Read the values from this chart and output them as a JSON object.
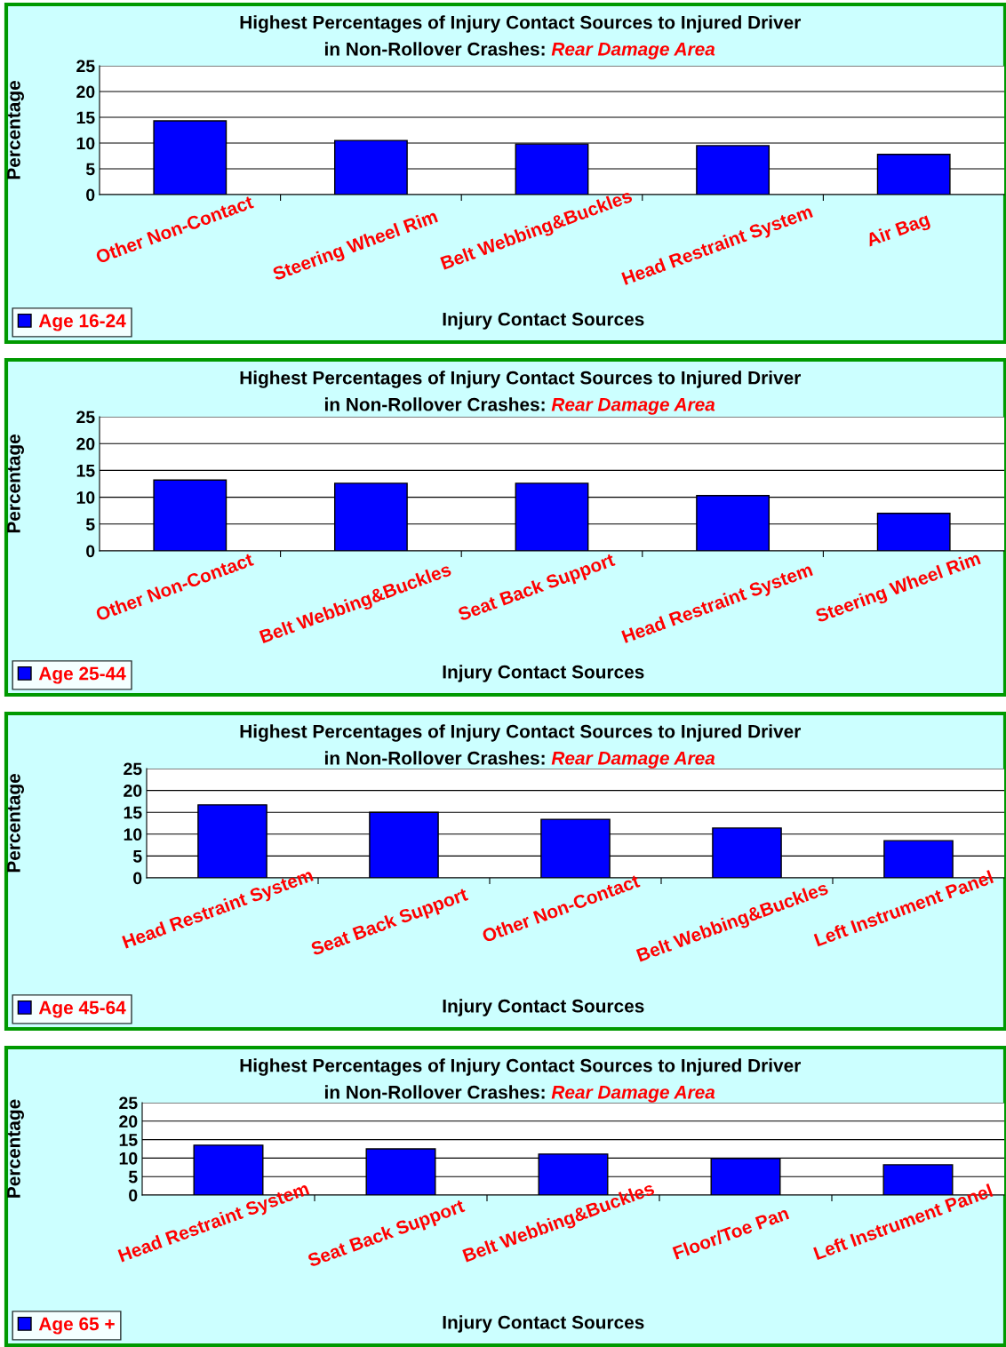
{
  "chart_data": [
    {
      "type": "bar",
      "title": "Highest Percentages of Injury Contact Sources to Injured Driver",
      "subtitle": "in Non-Rollover Crashes: Rear Damage Area",
      "xlabel": "Injury Contact Sources",
      "ylabel": "Percentage",
      "categories": [
        "Other Non-Contact",
        "Steering Wheel Rim",
        "Belt Webbing&Buckles",
        "Head Restraint System",
        "Air Bag"
      ],
      "series": [
        {
          "name": "Age 16-24",
          "color": "#0000ff",
          "values": [
            14.3,
            10.5,
            9.8,
            9.5,
            7.8
          ]
        }
      ],
      "ylim": [
        0,
        25
      ],
      "yticks": [
        0,
        5,
        10,
        15,
        20,
        25
      ],
      "grid": "y",
      "legend": "bottom left"
    },
    {
      "type": "bar",
      "title": "Highest Percentages of Injury Contact Sources to Injured Driver",
      "subtitle": "in Non-Rollover Crashes: Rear Damage Area",
      "xlabel": "Injury Contact Sources",
      "ylabel": "Percentage",
      "categories": [
        "Other Non-Contact",
        "Belt Webbing&Buckles",
        "Seat Back Support",
        "Head Restraint System",
        "Steering Wheel Rim"
      ],
      "series": [
        {
          "name": "Age 25-44",
          "color": "#0000ff",
          "values": [
            13.2,
            12.6,
            12.6,
            10.3,
            7.0
          ]
        }
      ],
      "ylim": [
        0,
        25
      ],
      "yticks": [
        0,
        5,
        10,
        15,
        20,
        25
      ],
      "grid": "y",
      "legend": "bottom left"
    },
    {
      "type": "bar",
      "title": "Highest Percentages of Injury Contact Sources to Injured Driver",
      "subtitle": "in Non-Rollover Crashes: Rear Damage Area",
      "xlabel": "Injury Contact Sources",
      "ylabel": "Percentage",
      "categories": [
        "Head Restraint System",
        "Seat Back Support",
        "Other Non-Contact",
        "Belt Webbing&Buckles",
        "Left Instrument Panel"
      ],
      "series": [
        {
          "name": "Age 45-64",
          "color": "#0000ff",
          "values": [
            16.7,
            15.0,
            13.4,
            11.4,
            8.5
          ]
        }
      ],
      "ylim": [
        0,
        25
      ],
      "yticks": [
        0,
        5,
        10,
        15,
        20,
        25
      ],
      "grid": "y",
      "legend": "bottom left"
    },
    {
      "type": "bar",
      "title": "Highest Percentages of Injury Contact Sources to Injured Driver",
      "subtitle": "in Non-Rollover Crashes: Rear Damage Area",
      "xlabel": "Injury Contact Sources",
      "ylabel": "Percentage",
      "categories": [
        "Head Restraint System",
        "Seat Back Support",
        "Belt Webbing&Buckles",
        "Floor/Toe Pan",
        "Left Instrument Panel"
      ],
      "series": [
        {
          "name": "Age 65 +",
          "color": "#0000ff",
          "values": [
            13.5,
            12.5,
            11.1,
            9.9,
            8.2
          ]
        }
      ],
      "ylim": [
        0,
        25
      ],
      "yticks": [
        0,
        5,
        10,
        15,
        20,
        25
      ],
      "grid": "y",
      "legend": "bottom left"
    }
  ]
}
